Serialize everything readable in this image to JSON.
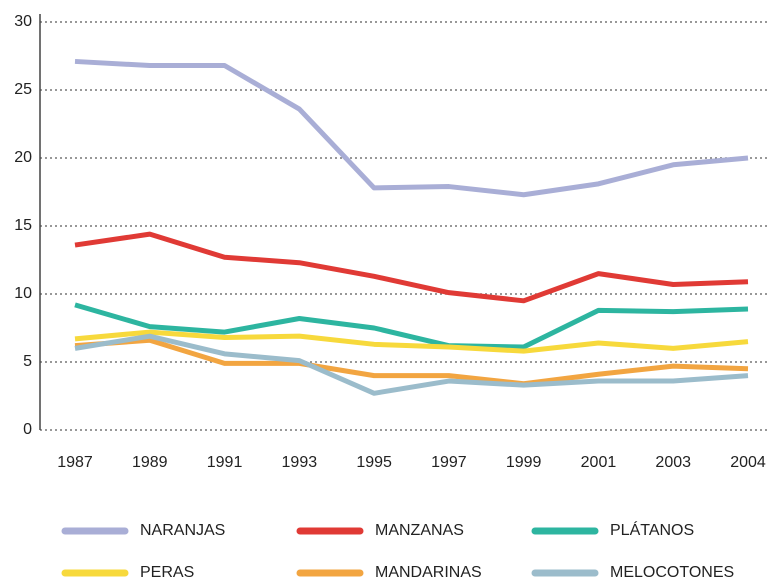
{
  "chart_data": {
    "type": "line",
    "categories": [
      "1987",
      "1989",
      "1991",
      "1993",
      "1995",
      "1997",
      "1999",
      "2001",
      "2003",
      "2004"
    ],
    "series": [
      {
        "name": "NARANJAS",
        "color": "#a9aed6",
        "values": [
          27.1,
          26.8,
          26.8,
          23.6,
          17.8,
          17.9,
          17.3,
          18.1,
          19.5,
          20.0
        ]
      },
      {
        "name": "MANZANAS",
        "color": "#e03a35",
        "values": [
          13.6,
          14.4,
          12.7,
          12.3,
          11.3,
          10.1,
          9.5,
          11.5,
          10.7,
          10.9
        ]
      },
      {
        "name": "PLÁTANOS",
        "color": "#2db5a0",
        "values": [
          9.2,
          7.6,
          7.2,
          8.2,
          7.5,
          6.2,
          6.1,
          8.8,
          8.7,
          8.9
        ]
      },
      {
        "name": "PERAS",
        "color": "#f7d93c",
        "values": [
          6.7,
          7.2,
          6.8,
          6.9,
          6.3,
          6.1,
          5.8,
          6.4,
          6.0,
          6.5
        ]
      },
      {
        "name": "MANDARINAS",
        "color": "#f2a541",
        "values": [
          6.2,
          6.6,
          4.9,
          4.9,
          4.0,
          4.0,
          3.4,
          4.1,
          4.7,
          4.5
        ]
      },
      {
        "name": "MELOCOTONES",
        "color": "#9bbccb",
        "values": [
          6.0,
          6.9,
          5.6,
          5.1,
          2.7,
          3.6,
          3.3,
          3.6,
          3.6,
          4.0
        ]
      }
    ],
    "ylim": [
      0,
      30
    ],
    "yticks": [
      0,
      5,
      10,
      15,
      20,
      25,
      30
    ],
    "grid": true
  }
}
